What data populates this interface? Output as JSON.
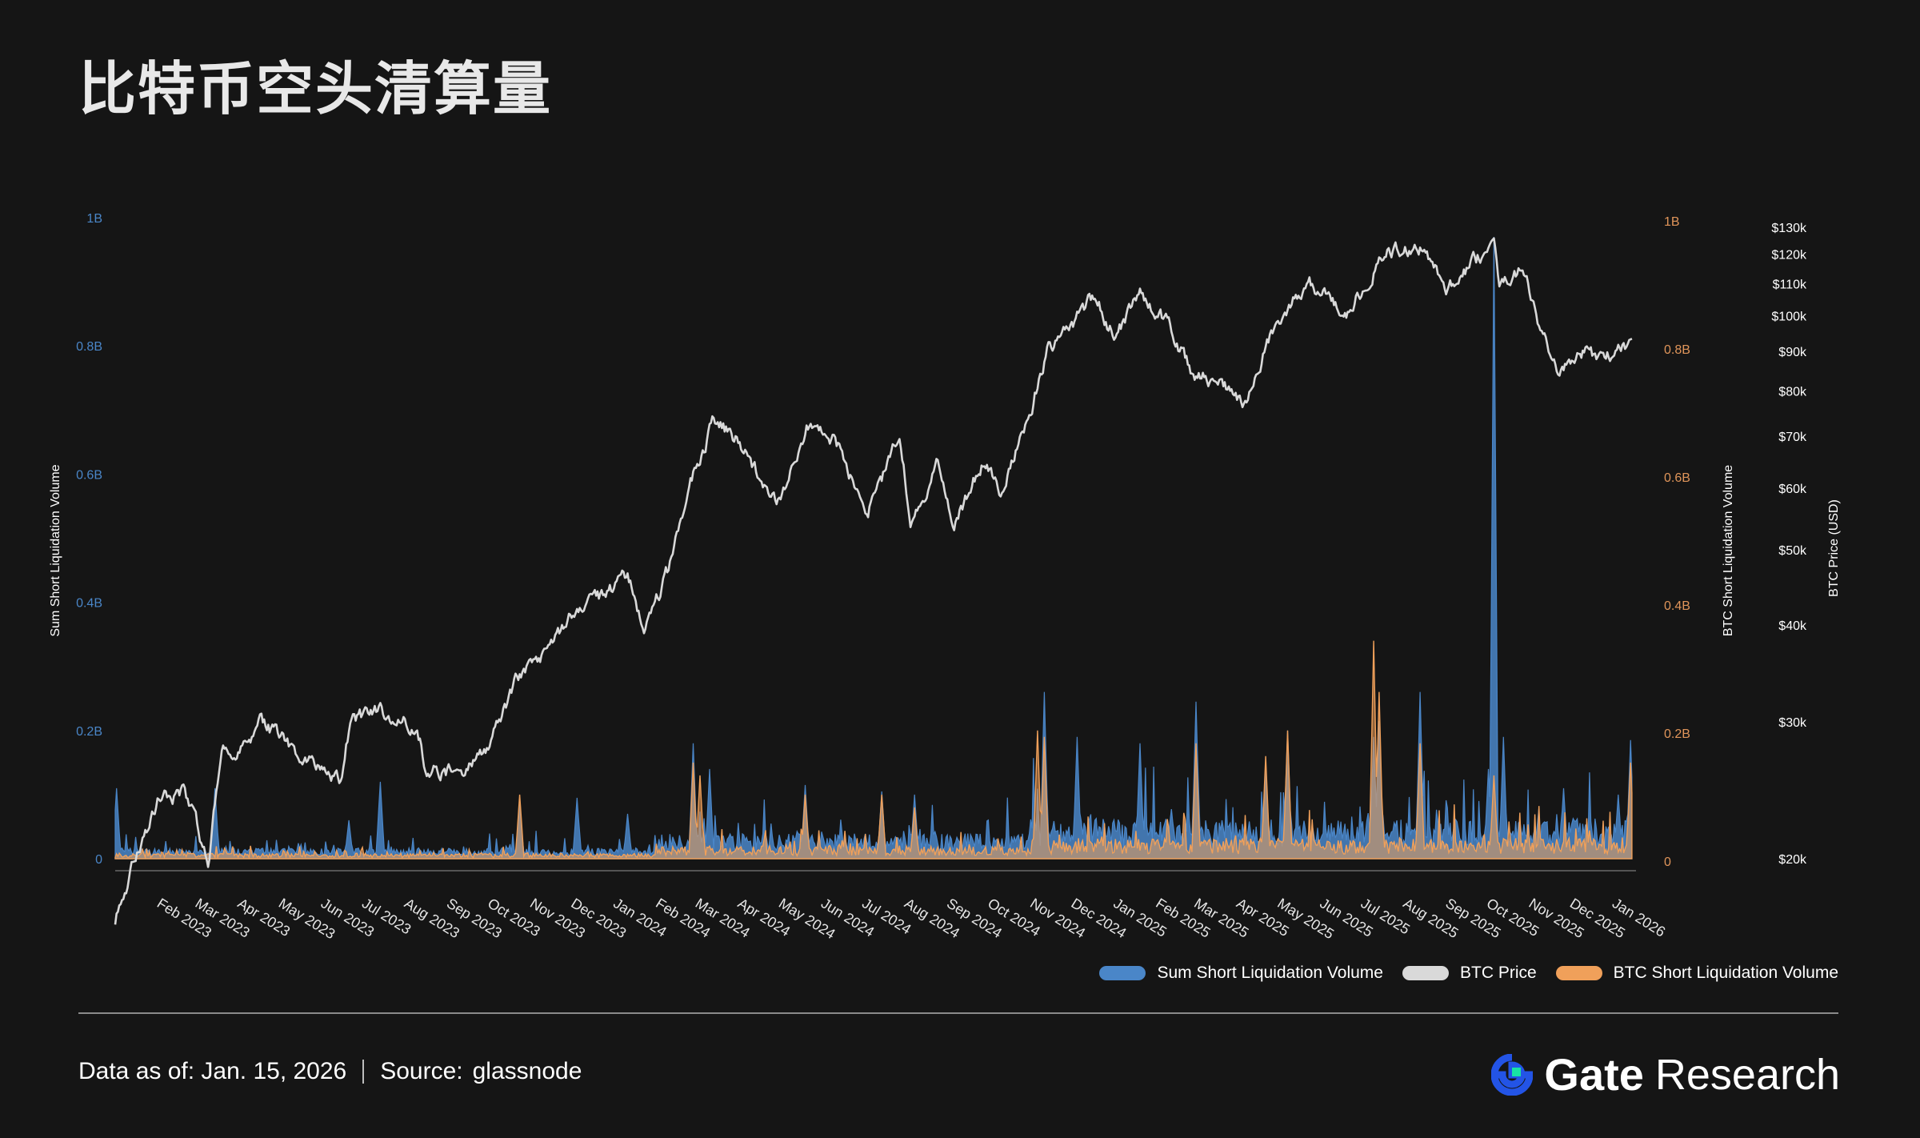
{
  "title": "比特币空头清算量",
  "colors": {
    "background": "#151515",
    "sum": "#4a86c8",
    "price": "#d9d9d9",
    "btc_short": "#f0a05a",
    "left_axis": "#4a86c8",
    "right_axis": "#e0955a"
  },
  "chart_data": {
    "type": "line",
    "y_left": {
      "label": "Sum Short Liquidation Volume",
      "ticks": [
        "0",
        "0.2B",
        "0.4B",
        "0.6B",
        "0.8B",
        "1B"
      ],
      "range": [
        0,
        1000000000
      ]
    },
    "y_right": {
      "label": "BTC Short Liquidation Volume",
      "ticks": [
        "0",
        "0.2B",
        "0.4B",
        "0.6B",
        "0.8B",
        "1B"
      ],
      "range": [
        0,
        1000000000
      ]
    },
    "y_price": {
      "label": "BTC Price (USD)",
      "scale": "log",
      "ticks": [
        "$20k",
        "$30k",
        "$40k",
        "$50k",
        "$60k",
        "$70k",
        "$80k",
        "$90k",
        "$100k",
        "$110k",
        "$120k",
        "$130k"
      ],
      "range": [
        20000,
        130000
      ]
    },
    "x_ticks": [
      "Feb 2023",
      "Mar 2023",
      "Apr 2023",
      "May 2023",
      "Jun 2023",
      "Jul 2023",
      "Aug 2023",
      "Sep 2023",
      "Oct 2023",
      "Nov 2023",
      "Dec 2023",
      "Jan 2024",
      "Feb 2024",
      "Mar 2024",
      "Apr 2024",
      "May 2024",
      "Jun 2024",
      "Jul 2024",
      "Aug 2024",
      "Sep 2024",
      "Oct 2024",
      "Nov 2024",
      "Dec 2024",
      "Jan 2025",
      "Feb 2025",
      "Mar 2025",
      "Apr 2025",
      "May 2025",
      "Jun 2025",
      "Jul 2025",
      "Aug 2025",
      "Sep 2025",
      "Oct 2025",
      "Nov 2025",
      "Dec 2025",
      "Jan 2026"
    ],
    "series": [
      {
        "name": "BTC Price",
        "points": [
          [
            "2023-01-01",
            16600
          ],
          [
            "2023-01-20",
            21000
          ],
          [
            "2023-02-01",
            23500
          ],
          [
            "2023-02-20",
            24500
          ],
          [
            "2023-03-10",
            20000
          ],
          [
            "2023-03-20",
            27500
          ],
          [
            "2023-04-10",
            28500
          ],
          [
            "2023-04-15",
            30500
          ],
          [
            "2023-05-01",
            28500
          ],
          [
            "2023-05-25",
            26500
          ],
          [
            "2023-06-15",
            25000
          ],
          [
            "2023-06-22",
            30000
          ],
          [
            "2023-07-15",
            31000
          ],
          [
            "2023-08-10",
            29500
          ],
          [
            "2023-08-17",
            26000
          ],
          [
            "2023-09-10",
            25800
          ],
          [
            "2023-10-01",
            27500
          ],
          [
            "2023-10-24",
            34500
          ],
          [
            "2023-11-15",
            37000
          ],
          [
            "2023-12-05",
            42000
          ],
          [
            "2023-12-25",
            43500
          ],
          [
            "2024-01-11",
            46500
          ],
          [
            "2024-01-23",
            39500
          ],
          [
            "2024-02-10",
            47000
          ],
          [
            "2024-02-28",
            62000
          ],
          [
            "2024-03-14",
            73000
          ],
          [
            "2024-04-01",
            69000
          ],
          [
            "2024-04-17",
            61500
          ],
          [
            "2024-05-01",
            58000
          ],
          [
            "2024-05-21",
            71000
          ],
          [
            "2024-06-10",
            69500
          ],
          [
            "2024-07-05",
            56000
          ],
          [
            "2024-07-28",
            69500
          ],
          [
            "2024-08-05",
            54500
          ],
          [
            "2024-08-25",
            64000
          ],
          [
            "2024-09-06",
            53500
          ],
          [
            "2024-09-28",
            66000
          ],
          [
            "2024-10-10",
            60000
          ],
          [
            "2024-10-29",
            72500
          ],
          [
            "2024-11-13",
            90000
          ],
          [
            "2024-12-05",
            99000
          ],
          [
            "2024-12-17",
            106000
          ],
          [
            "2025-01-02",
            94000
          ],
          [
            "2025-01-20",
            106000
          ],
          [
            "2025-02-10",
            97000
          ],
          [
            "2025-02-28",
            84000
          ],
          [
            "2025-03-15",
            83000
          ],
          [
            "2025-04-08",
            76500
          ],
          [
            "2025-04-25",
            94000
          ],
          [
            "2025-05-22",
            111000
          ],
          [
            "2025-06-22",
            100000
          ],
          [
            "2025-07-14",
            120000
          ],
          [
            "2025-08-14",
            122000
          ],
          [
            "2025-09-01",
            108000
          ],
          [
            "2025-09-20",
            116000
          ],
          [
            "2025-10-06",
            125000
          ],
          [
            "2025-10-10",
            110000
          ],
          [
            "2025-10-27",
            114000
          ],
          [
            "2025-11-21",
            84000
          ],
          [
            "2025-12-08",
            91000
          ],
          [
            "2025-12-25",
            87500
          ],
          [
            "2026-01-10",
            91000
          ],
          [
            "2026-01-15",
            96500
          ]
        ]
      },
      {
        "name": "Sum Short Liquidation Volume",
        "peaks": [
          [
            "2023-01-02",
            110000000
          ],
          [
            "2023-03-15",
            110000000
          ],
          [
            "2023-06-21",
            60000000
          ],
          [
            "2023-07-14",
            120000000
          ],
          [
            "2023-10-24",
            85000000
          ],
          [
            "2023-12-05",
            95000000
          ],
          [
            "2024-01-11",
            70000000
          ],
          [
            "2024-02-28",
            180000000
          ],
          [
            "2024-03-11",
            140000000
          ],
          [
            "2024-05-20",
            115000000
          ],
          [
            "2024-07-15",
            105000000
          ],
          [
            "2024-08-08",
            100000000
          ],
          [
            "2024-11-11",
            260000000
          ],
          [
            "2024-12-05",
            190000000
          ],
          [
            "2025-01-20",
            180000000
          ],
          [
            "2025-03-02",
            245000000
          ],
          [
            "2025-04-22",
            150000000
          ],
          [
            "2025-05-08",
            200000000
          ],
          [
            "2025-07-10",
            190000000
          ],
          [
            "2025-07-14",
            215000000
          ],
          [
            "2025-08-13",
            260000000
          ],
          [
            "2025-10-02",
            140000000
          ],
          [
            "2025-10-06",
            970000000
          ],
          [
            "2025-10-13",
            190000000
          ],
          [
            "2025-11-26",
            110000000
          ],
          [
            "2026-01-05",
            100000000
          ],
          [
            "2026-01-14",
            185000000
          ]
        ]
      },
      {
        "name": "BTC Short Liquidation Volume",
        "peaks": [
          [
            "2023-10-24",
            100000000
          ],
          [
            "2024-02-28",
            150000000
          ],
          [
            "2024-03-04",
            130000000
          ],
          [
            "2024-05-20",
            100000000
          ],
          [
            "2024-07-15",
            100000000
          ],
          [
            "2024-08-08",
            80000000
          ],
          [
            "2024-11-06",
            200000000
          ],
          [
            "2024-11-11",
            190000000
          ],
          [
            "2025-03-02",
            180000000
          ],
          [
            "2025-04-22",
            160000000
          ],
          [
            "2025-05-08",
            200000000
          ],
          [
            "2025-07-10",
            340000000
          ],
          [
            "2025-07-14",
            260000000
          ],
          [
            "2025-08-13",
            180000000
          ],
          [
            "2025-10-06",
            130000000
          ],
          [
            "2026-01-14",
            150000000
          ]
        ]
      }
    ],
    "legend_position": "bottom-right"
  },
  "legend": [
    {
      "label": "Sum Short Liquidation Volume",
      "color": "#4a86c8"
    },
    {
      "label": "BTC Price",
      "color": "#d9d9d9"
    },
    {
      "label": "BTC Short Liquidation Volume",
      "color": "#f0a05a"
    }
  ],
  "footer": {
    "data_as_of": "Data as of: Jan. 15, 2026",
    "source_label": "Source:",
    "source_value": "glassnode"
  },
  "brand": {
    "name": "Gate",
    "suffix": "Research"
  }
}
